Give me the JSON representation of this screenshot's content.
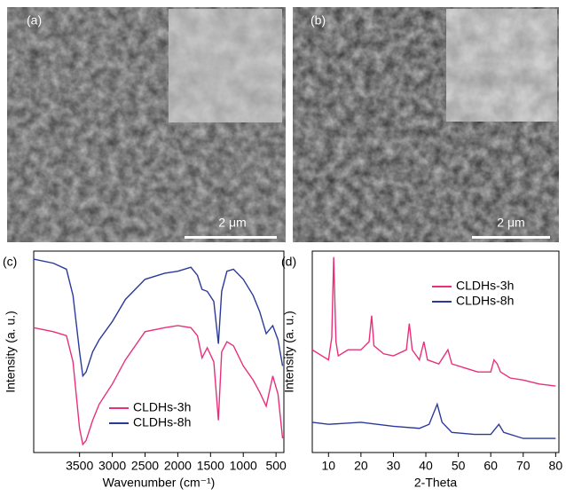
{
  "panels": [
    {
      "label": "(a)",
      "scale_bar": "2 μm"
    },
    {
      "label": "(b)",
      "scale_bar": "2 μm"
    }
  ],
  "chart_data": [
    {
      "type": "line",
      "panel_label": "(c)",
      "xlabel": "Wavenumber (cm⁻¹)",
      "ylabel": "Intensity (a. u.)",
      "legend": "lower-center",
      "xlim": [
        4200,
        380
      ],
      "ylim": [
        0,
        100
      ],
      "xticks": [
        3500,
        3000,
        2500,
        2000,
        1500,
        1000,
        500
      ],
      "x": [
        4200,
        3900,
        3700,
        3600,
        3500,
        3450,
        3400,
        3300,
        3200,
        3000,
        2800,
        2500,
        2200,
        2000,
        1800,
        1700,
        1630,
        1550,
        1450,
        1380,
        1330,
        1250,
        1150,
        1000,
        850,
        750,
        650,
        550,
        470,
        400
      ],
      "series": [
        {
          "name": "CLDHs-3h",
          "color": "#e8307a",
          "values": [
            62,
            60,
            58,
            45,
            12,
            4,
            6,
            16,
            24,
            34,
            46,
            60,
            62,
            63,
            62,
            58,
            47,
            52,
            45,
            16,
            50,
            55,
            53,
            43,
            36,
            30,
            23,
            38,
            29,
            7
          ]
        },
        {
          "name": "CLDHs-8h",
          "color": "#2b3a9a",
          "values": [
            96,
            94,
            91,
            78,
            50,
            38,
            40,
            50,
            56,
            65,
            76,
            86,
            89,
            90,
            92,
            88,
            81,
            80,
            75,
            54,
            80,
            90,
            91,
            86,
            78,
            70,
            59,
            63,
            56,
            43
          ]
        }
      ]
    },
    {
      "type": "line",
      "panel_label": "(d)",
      "xlabel": "2-Theta",
      "ylabel": "Intensity (a. u.)",
      "legend": "upper-right",
      "xlim": [
        5,
        81
      ],
      "ylim": [
        0,
        100
      ],
      "xticks": [
        10,
        20,
        30,
        40,
        50,
        60,
        70,
        80
      ],
      "series": [
        {
          "name": "CLDHs-3h",
          "color": "#e8307a",
          "x": [
            5,
            8,
            10,
            11,
            11.6,
            12.3,
            13,
            16,
            20,
            22.5,
            23.3,
            24,
            27,
            30,
            34,
            34.9,
            35.8,
            38,
            39.4,
            40.5,
            44,
            46.8,
            48,
            52,
            56,
            60,
            61,
            62,
            63,
            66,
            70,
            75,
            80
          ],
          "values": [
            51,
            48,
            46,
            57,
            97,
            55,
            48,
            51,
            51,
            55,
            68,
            53,
            49,
            48,
            51,
            64,
            51,
            46,
            55,
            46,
            44,
            51,
            44,
            42,
            40,
            40,
            46,
            44,
            40,
            37,
            36,
            34,
            33
          ]
        },
        {
          "name": "CLDHs-8h",
          "color": "#2b3a9a",
          "x": [
            5,
            10,
            20,
            30,
            38,
            41,
            43.5,
            45,
            48,
            55,
            60,
            62.5,
            64,
            70,
            80
          ],
          "values": [
            15,
            14,
            15,
            13,
            12,
            14,
            24,
            15,
            10,
            9,
            9,
            14,
            10,
            7,
            7
          ]
        }
      ]
    }
  ]
}
